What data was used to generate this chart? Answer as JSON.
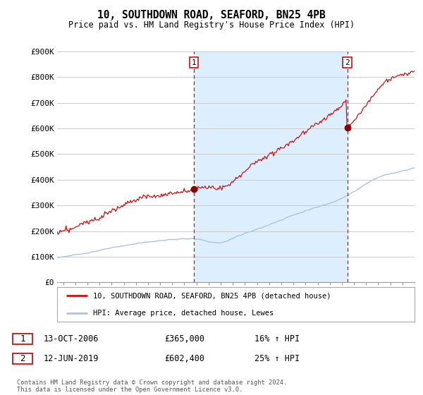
{
  "title": "10, SOUTHDOWN ROAD, SEAFORD, BN25 4PB",
  "subtitle": "Price paid vs. HM Land Registry's House Price Index (HPI)",
  "ylabel_ticks": [
    "£0",
    "£100K",
    "£200K",
    "£300K",
    "£400K",
    "£500K",
    "£600K",
    "£700K",
    "£800K",
    "£900K"
  ],
  "ylim": [
    0,
    900000
  ],
  "xlim_start": 1995.5,
  "xlim_end": 2025.0,
  "sale1_x": 2006.79,
  "sale1_y": 365000,
  "sale1_label": "1",
  "sale2_x": 2019.45,
  "sale2_y": 602400,
  "sale2_label": "2",
  "hpi_color": "#aac4e0",
  "price_color": "#cc1111",
  "vline_color": "#cc1111",
  "shade_color": "#ddeeff",
  "grid_color": "#cccccc",
  "background_color": "#ffffff",
  "legend_label_red": "10, SOUTHDOWN ROAD, SEAFORD, BN25 4PB (detached house)",
  "legend_label_blue": "HPI: Average price, detached house, Lewes",
  "table_row1": [
    "1",
    "13-OCT-2006",
    "£365,000",
    "16% ↑ HPI"
  ],
  "table_row2": [
    "2",
    "12-JUN-2019",
    "£602,400",
    "25% ↑ HPI"
  ],
  "footnote": "Contains HM Land Registry data © Crown copyright and database right 2024.\nThis data is licensed under the Open Government Licence v3.0."
}
